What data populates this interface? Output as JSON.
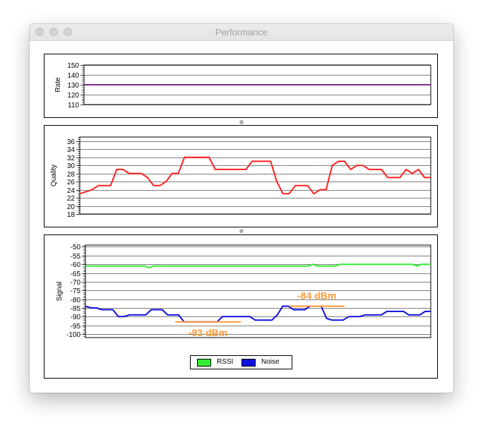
{
  "window": {
    "title": "Performance"
  },
  "colors": {
    "rate": "#7a2a8a",
    "quality": "#ff2020",
    "rssi": "#33ee33",
    "noise": "#1010dd",
    "annotation": "#ff9933"
  },
  "chart_data": [
    {
      "type": "line",
      "ylabel": "Rate",
      "ylim": [
        110,
        150
      ],
      "yticks": [
        "150",
        "140",
        "130",
        "120",
        "110"
      ],
      "grid": true,
      "series": [
        {
          "values": [
            130,
            130
          ]
        }
      ]
    },
    {
      "type": "line",
      "ylabel": "Quality",
      "ylim": [
        18,
        37
      ],
      "yticks": [
        "36",
        "34",
        "32",
        "30",
        "28",
        "26",
        "24",
        "22",
        "20",
        "18"
      ],
      "grid": true,
      "series": [
        {
          "values": [
            23,
            23.5,
            24,
            25,
            25,
            25,
            29,
            29,
            28,
            28,
            28,
            27,
            25,
            25,
            26,
            28,
            28,
            32,
            32,
            32,
            32,
            32,
            29,
            29,
            29,
            29,
            29,
            29,
            31,
            31,
            31,
            31,
            26,
            23,
            23,
            25,
            25,
            25,
            23,
            24,
            24,
            30,
            31,
            31,
            29,
            30,
            30,
            29,
            29,
            29,
            27,
            27,
            27,
            29,
            28,
            29,
            27,
            27
          ]
        }
      ]
    },
    {
      "type": "line",
      "ylabel": "Signal",
      "ylim": [
        -102,
        -49
      ],
      "yticks": [
        "-50",
        "-55",
        "-60",
        "-65",
        "-70",
        "-75",
        "-80",
        "-85",
        "-90",
        "-95",
        "-100"
      ],
      "grid": true,
      "legend_position": "bottom",
      "series": [
        {
          "name": "RSSI",
          "values": [
            -61,
            -61,
            -61,
            -61,
            -61,
            -61,
            -61,
            -61,
            -61,
            -61,
            -61,
            -61,
            -61,
            -61,
            -62,
            -61,
            -61,
            -61,
            -61,
            -61,
            -61,
            -61,
            -61,
            -61,
            -61,
            -61,
            -61,
            -61,
            -61,
            -61,
            -61,
            -61,
            -61,
            -61,
            -61,
            -61,
            -61,
            -61,
            -61,
            -61,
            -61,
            -61,
            -61,
            -61,
            -61,
            -61,
            -61,
            -61,
            -61,
            -61,
            -60,
            -61,
            -61,
            -61,
            -61,
            -61,
            -60,
            -60,
            -60,
            -60,
            -60,
            -60,
            -60,
            -60,
            -60,
            -60,
            -60,
            -60,
            -60,
            -60,
            -60,
            -60,
            -60,
            -61,
            -60,
            -60,
            -60
          ]
        },
        {
          "name": "Noise",
          "values": [
            -84,
            -85,
            -85,
            -86,
            -86,
            -86,
            -90,
            -90,
            -89,
            -89,
            -89,
            -89,
            -86,
            -86,
            -86,
            -89,
            -89,
            -89,
            -93,
            -93,
            -93,
            -93,
            -93,
            -93,
            -93,
            -90,
            -90,
            -90,
            -90,
            -90,
            -90,
            -92,
            -92,
            -92,
            -92,
            -89,
            -84,
            -84,
            -86,
            -86,
            -86,
            -84,
            -84,
            -84,
            -91,
            -92,
            -92,
            -92,
            -90,
            -90,
            -90,
            -89,
            -89,
            -89,
            -89,
            -87,
            -87,
            -87,
            -87,
            -89,
            -89,
            -89,
            -87,
            -87
          ]
        }
      ],
      "annotations": [
        {
          "text": "-84 dBm",
          "y": -84,
          "x_from": 0.59,
          "x_to": 0.75,
          "label_side": "above"
        },
        {
          "text": "-93 dBm",
          "y": -93,
          "x_from": 0.26,
          "x_to": 0.45,
          "label_side": "below"
        }
      ]
    }
  ],
  "legend": {
    "items": [
      {
        "label": "RSSI"
      },
      {
        "label": "Noise"
      }
    ]
  }
}
